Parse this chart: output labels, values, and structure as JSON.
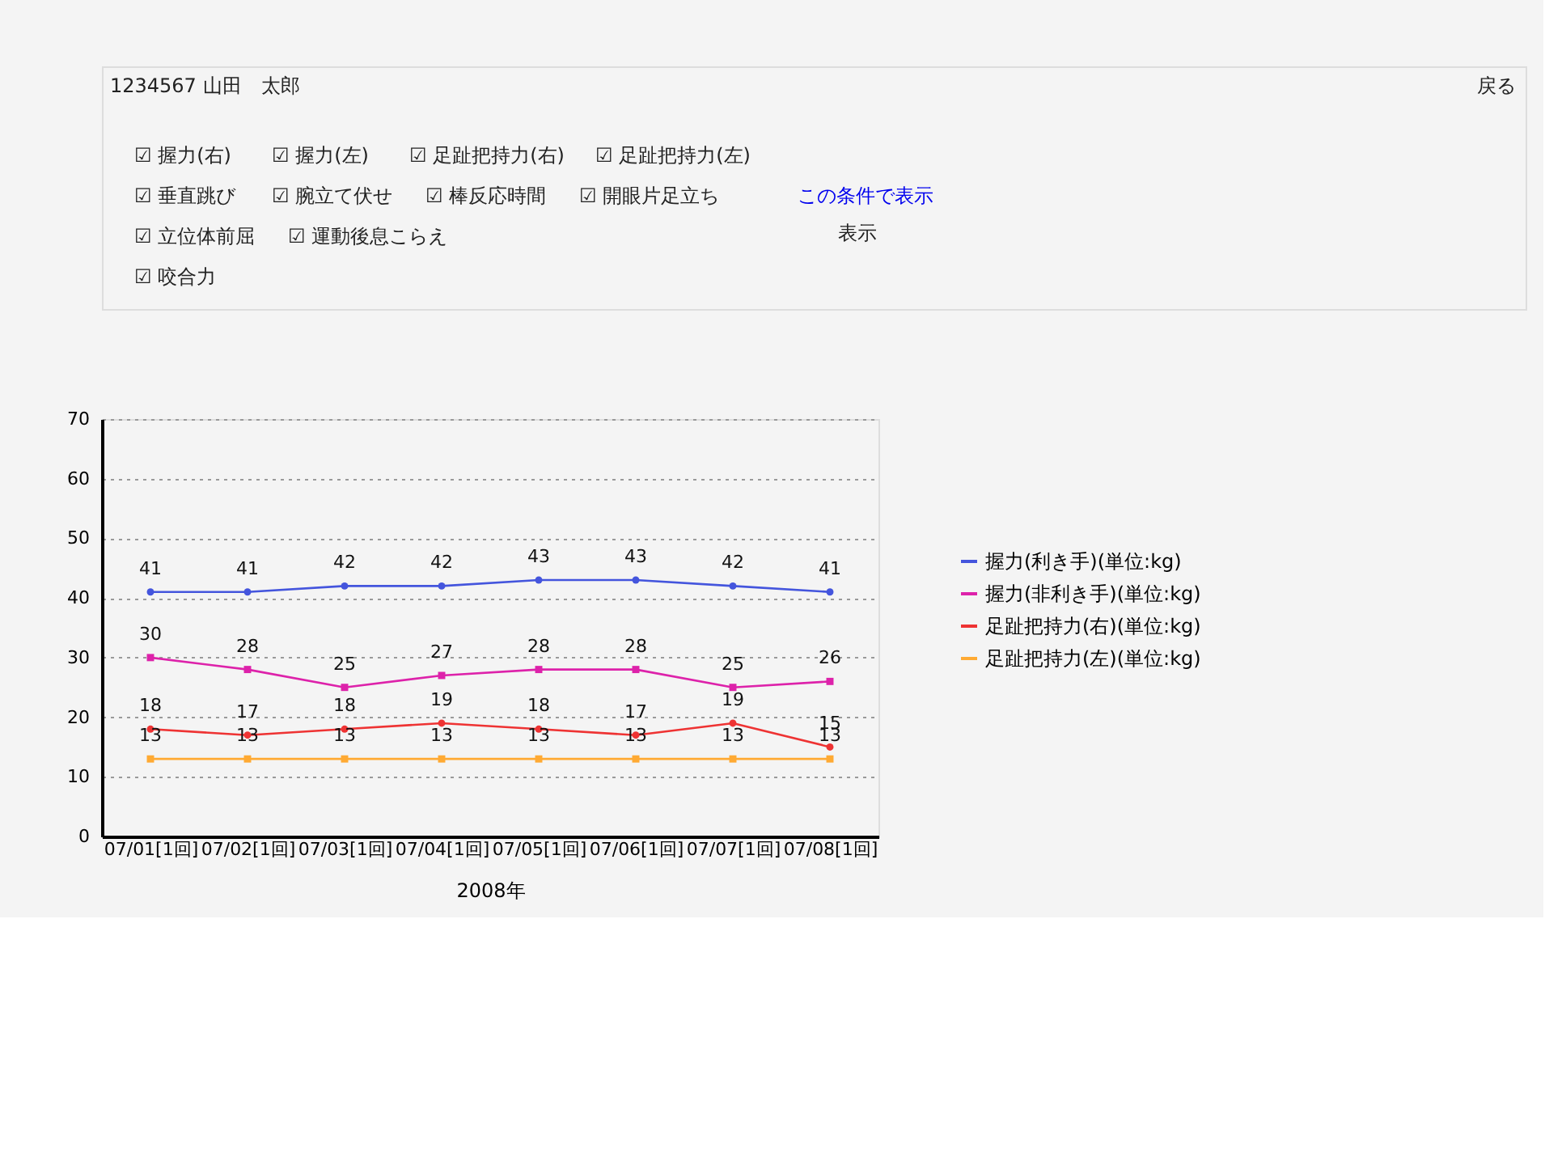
{
  "chart_data": {
    "type": "line",
    "categories": [
      "07/01[1回]",
      "07/02[1回]",
      "07/03[1回]",
      "07/04[1回]",
      "07/05[1回]",
      "07/06[1回]",
      "07/07[1回]",
      "07/08[1回]"
    ],
    "xlabel": "2008年",
    "series": [
      {
        "name": "握力(利き手)(単位:kg)",
        "color": "#4455dd",
        "marker": "circle",
        "values": [
          41,
          41,
          42,
          42,
          43,
          43,
          42,
          41
        ]
      },
      {
        "name": "握力(非利き手)(単位:kg)",
        "color": "#dd22aa",
        "marker": "square",
        "values": [
          30,
          28,
          25,
          27,
          28,
          28,
          25,
          26
        ]
      },
      {
        "name": "足趾把持力(右)(単位:kg)",
        "color": "#ee3333",
        "marker": "circle",
        "values": [
          18,
          17,
          18,
          19,
          18,
          17,
          19,
          15
        ]
      },
      {
        "name": "足趾把持力(左)(単位:kg)",
        "color": "#ffaa33",
        "marker": "square",
        "values": [
          13,
          13,
          13,
          13,
          13,
          13,
          13,
          13
        ]
      }
    ],
    "ylim": [
      0,
      70
    ],
    "yticks": [
      0,
      10,
      20,
      30,
      40,
      50,
      60,
      70
    ],
    "grid": "y",
    "legend": "right",
    "data_labels": true,
    "annotations": [
      "1234567 山田　太郎",
      "戻る",
      "☑ 握力(右)",
      "☑ 握力(左)",
      "☑ 足趾把持力(右)",
      "☑ 足趾把持力(左)",
      "☑ 垂直跳び",
      "☑ 腕立て伏せ",
      "☑ 棒反応時間",
      "☑ 開眼片足立ち",
      "☑ 立位体前屈",
      "☑ 運動後息こらえ",
      "☑ 咬合力",
      "この条件で表示",
      "表示"
    ]
  }
}
